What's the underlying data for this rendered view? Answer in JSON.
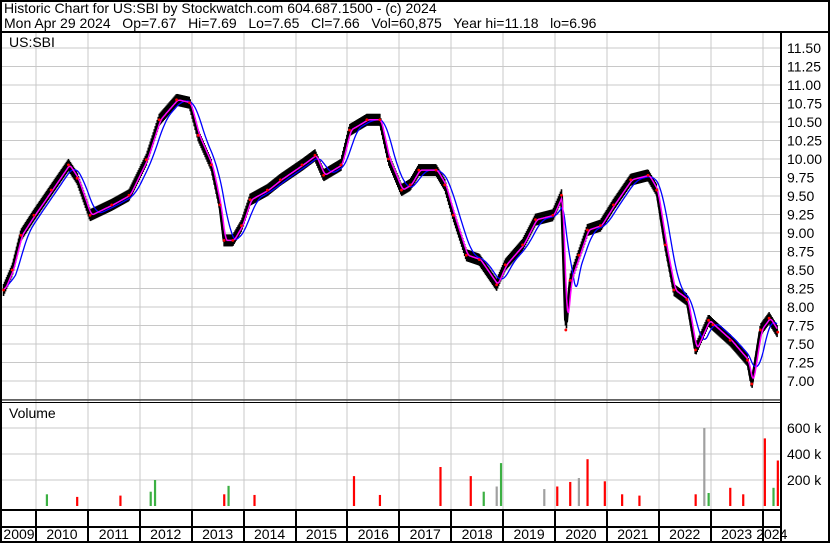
{
  "header": {
    "title": "Historic Chart for US:SBI by Stockwatch.com 604.687.1500 - (c) 2024",
    "quote": "Mon Apr 29 2024   Op=7.67   Hi=7.69   Lo=7.65   Cl=7.66   Vol=60,875   Year hi=11.18   lo=6.96"
  },
  "chart_data": [
    {
      "type": "line",
      "panel": "price",
      "symbol_label": "US:SBI",
      "ylim": [
        6.75,
        11.5
      ],
      "y_ticks": [
        "11.50",
        "11.25",
        "11.00",
        "10.75",
        "10.50",
        "10.25",
        "10.00",
        "9.75",
        "9.50",
        "9.25",
        "9.00",
        "8.75",
        "8.50",
        "8.25",
        "8.00",
        "7.75",
        "7.50",
        "7.25",
        "7.00"
      ],
      "y_axis_side": "right",
      "grid": true,
      "colors": {
        "price": "#000000",
        "ma_short": "#ff00ff",
        "ma_long": "#0000ff",
        "down_tick": "#ff0000"
      },
      "series": [
        {
          "key": "close",
          "points": [
            [
              "2009-05",
              8.23
            ],
            [
              "2009-07",
              8.5
            ],
            [
              "2009-09",
              8.97
            ],
            [
              "2009-12",
              9.24
            ],
            [
              "2010-04",
              9.58
            ],
            [
              "2010-08",
              9.92
            ],
            [
              "2010-10",
              9.74
            ],
            [
              "2011-01",
              9.24
            ],
            [
              "2011-06",
              9.38
            ],
            [
              "2011-10",
              9.51
            ],
            [
              "2012-02",
              9.99
            ],
            [
              "2012-05",
              10.53
            ],
            [
              "2012-09",
              10.8
            ],
            [
              "2012-12",
              10.76
            ],
            [
              "2013-02",
              10.32
            ],
            [
              "2013-05",
              9.92
            ],
            [
              "2013-07",
              9.38
            ],
            [
              "2013-08",
              8.9
            ],
            [
              "2013-10",
              8.9
            ],
            [
              "2013-12",
              9.1
            ],
            [
              "2014-02",
              9.45
            ],
            [
              "2014-06",
              9.58
            ],
            [
              "2014-09",
              9.72
            ],
            [
              "2015-02",
              9.92
            ],
            [
              "2015-05",
              10.05
            ],
            [
              "2015-07",
              9.78
            ],
            [
              "2015-11",
              9.92
            ],
            [
              "2016-01",
              10.39
            ],
            [
              "2016-05",
              10.53
            ],
            [
              "2016-08",
              10.53
            ],
            [
              "2016-10",
              10.0
            ],
            [
              "2017-01",
              9.58
            ],
            [
              "2017-03",
              9.65
            ],
            [
              "2017-05",
              9.85
            ],
            [
              "2017-09",
              9.85
            ],
            [
              "2017-11",
              9.65
            ],
            [
              "2018-01",
              9.24
            ],
            [
              "2018-04",
              8.7
            ],
            [
              "2018-07",
              8.64
            ],
            [
              "2018-11",
              8.3
            ],
            [
              "2019-01",
              8.57
            ],
            [
              "2019-05",
              8.84
            ],
            [
              "2019-08",
              9.18
            ],
            [
              "2019-12",
              9.24
            ],
            [
              "2020-02",
              9.51
            ],
            [
              "2020-03",
              7.69
            ],
            [
              "2020-04",
              8.36
            ],
            [
              "2020-06",
              8.7
            ],
            [
              "2020-08",
              9.04
            ],
            [
              "2020-11",
              9.1
            ],
            [
              "2021-02",
              9.38
            ],
            [
              "2021-06",
              9.72
            ],
            [
              "2021-10",
              9.78
            ],
            [
              "2021-12",
              9.58
            ],
            [
              "2022-02",
              8.84
            ],
            [
              "2022-04",
              8.23
            ],
            [
              "2022-07",
              8.1
            ],
            [
              "2022-09",
              7.42
            ],
            [
              "2022-12",
              7.82
            ],
            [
              "2023-01",
              7.76
            ],
            [
              "2023-05",
              7.55
            ],
            [
              "2023-09",
              7.28
            ],
            [
              "2023-10",
              6.96
            ],
            [
              "2023-12",
              7.69
            ],
            [
              "2024-02",
              7.85
            ],
            [
              "2024-04",
              7.66
            ]
          ]
        }
      ]
    },
    {
      "type": "bar",
      "panel": "volume",
      "title": "Volume",
      "y_ticks": [
        "600 k",
        "400 k",
        "200 k"
      ],
      "ylim": [
        0,
        600000
      ],
      "colors": {
        "up": "#3cb043",
        "down": "#ff0000",
        "unchanged": "#a0a0a0"
      },
      "bars": [
        [
          "2010-03",
          90000,
          "up"
        ],
        [
          "2010-10",
          70000,
          "down"
        ],
        [
          "2011-08",
          80000,
          "down"
        ],
        [
          "2012-04",
          200000,
          "up"
        ],
        [
          "2012-03",
          110000,
          "up"
        ],
        [
          "2013-09",
          155000,
          "up"
        ],
        [
          "2013-08",
          90000,
          "down"
        ],
        [
          "2014-03",
          85000,
          "down"
        ],
        [
          "2016-02",
          230000,
          "down"
        ],
        [
          "2016-08",
          85000,
          "down"
        ],
        [
          "2017-10",
          300000,
          "down"
        ],
        [
          "2018-05",
          230000,
          "down"
        ],
        [
          "2018-08",
          110000,
          "up"
        ],
        [
          "2018-12",
          330000,
          "up"
        ],
        [
          "2018-11",
          150000,
          "unchanged"
        ],
        [
          "2019-10",
          130000,
          "unchanged"
        ],
        [
          "2020-01",
          150000,
          "down"
        ],
        [
          "2020-04",
          185000,
          "down"
        ],
        [
          "2020-06",
          215000,
          "unchanged"
        ],
        [
          "2020-08",
          360000,
          "down"
        ],
        [
          "2020-12",
          190000,
          "down"
        ],
        [
          "2021-04",
          90000,
          "down"
        ],
        [
          "2021-08",
          80000,
          "down"
        ],
        [
          "2022-09",
          90000,
          "down"
        ],
        [
          "2022-11",
          600000,
          "unchanged"
        ],
        [
          "2022-12",
          100000,
          "up"
        ],
        [
          "2023-05",
          140000,
          "down"
        ],
        [
          "2023-08",
          90000,
          "down"
        ],
        [
          "2024-01",
          520000,
          "down"
        ],
        [
          "2024-04",
          350000,
          "down"
        ],
        [
          "2024-03",
          140000,
          "up"
        ]
      ]
    }
  ],
  "x_axis": {
    "years": [
      "2009",
      "2010",
      "2011",
      "2012",
      "2013",
      "2014",
      "2015",
      "2016",
      "2017",
      "2018",
      "2019",
      "2020",
      "2021",
      "2022",
      "2023",
      "2024"
    ]
  }
}
